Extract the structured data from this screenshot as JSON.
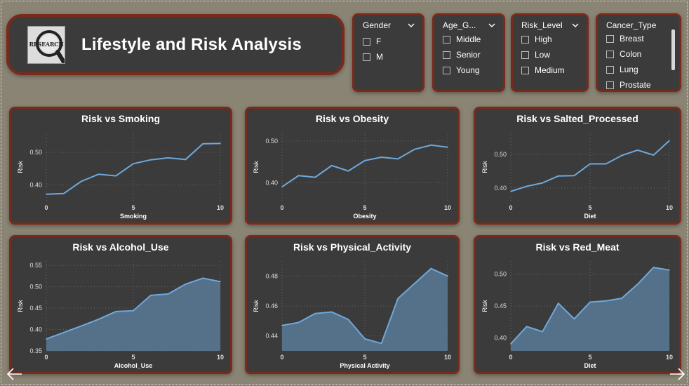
{
  "header": {
    "title": "Lifestyle and Risk Analysis",
    "logo_text": "RESEARCH"
  },
  "slicers": [
    {
      "title": "Gender",
      "items": [
        "F",
        "M"
      ]
    },
    {
      "title": "Age_G...",
      "items": [
        "Middle",
        "Senior",
        "Young"
      ]
    },
    {
      "title": "Risk_Level",
      "items": [
        "High",
        "Low",
        "Medium"
      ]
    },
    {
      "title": "Cancer_Type",
      "items": [
        "Breast",
        "Colon",
        "Lung",
        "Prostate"
      ]
    }
  ],
  "chart_data": [
    {
      "type": "line",
      "title": "Risk vs Smoking",
      "xlabel": "Smoking",
      "ylabel": "Risk",
      "xlim": [
        0,
        10
      ],
      "ylim": [
        0.35,
        0.56
      ],
      "xticks": [
        0,
        5,
        10
      ],
      "yticks": [
        0.4,
        0.5
      ],
      "grid": true,
      "fill": false,
      "color": "#6fa8dc",
      "x": [
        0,
        1,
        2,
        3,
        4,
        5,
        6,
        7,
        8,
        9,
        10
      ],
      "y": [
        0.372,
        0.374,
        0.411,
        0.433,
        0.428,
        0.465,
        0.477,
        0.483,
        0.478,
        0.526,
        0.527
      ]
    },
    {
      "type": "line",
      "title": "Risk vs Obesity",
      "xlabel": "Obesity",
      "ylabel": "Risk",
      "xlim": [
        0,
        10
      ],
      "ylim": [
        0.355,
        0.52
      ],
      "xticks": [
        0,
        5,
        10
      ],
      "yticks": [
        0.4,
        0.5
      ],
      "grid": true,
      "fill": false,
      "color": "#6fa8dc",
      "x": [
        0,
        1,
        2,
        3,
        4,
        5,
        6,
        7,
        8,
        9,
        10
      ],
      "y": [
        0.39,
        0.417,
        0.413,
        0.441,
        0.428,
        0.453,
        0.461,
        0.457,
        0.48,
        0.49,
        0.485
      ]
    },
    {
      "type": "line",
      "title": "Risk vs Salted_Processed",
      "xlabel": "Diet",
      "ylabel": "Risk",
      "xlim": [
        0,
        10
      ],
      "ylim": [
        0.36,
        0.565
      ],
      "xticks": [
        0,
        5,
        10
      ],
      "yticks": [
        0.4,
        0.5
      ],
      "grid": true,
      "fill": false,
      "color": "#6fa8dc",
      "x": [
        0,
        1,
        2,
        3,
        4,
        5,
        6,
        7,
        8,
        9,
        10
      ],
      "y": [
        0.39,
        0.405,
        0.415,
        0.436,
        0.437,
        0.472,
        0.472,
        0.497,
        0.513,
        0.498,
        0.541
      ]
    },
    {
      "type": "area",
      "title": "Risk vs Alcohol_Use",
      "xlabel": "Alcohol_Use",
      "ylabel": "Risk",
      "xlim": [
        0,
        10
      ],
      "ylim": [
        0.35,
        0.56
      ],
      "xticks": [
        0,
        5,
        10
      ],
      "yticks": [
        0.35,
        0.4,
        0.45,
        0.5,
        0.55
      ],
      "grid": true,
      "fill": true,
      "color": "#6fa8dc",
      "x": [
        0,
        1,
        2,
        3,
        4,
        5,
        6,
        7,
        8,
        9,
        10
      ],
      "y": [
        0.378,
        0.393,
        0.408,
        0.424,
        0.442,
        0.444,
        0.48,
        0.483,
        0.506,
        0.52,
        0.512
      ]
    },
    {
      "type": "area",
      "title": "Risk vs Physical_Activity",
      "xlabel": "Physical Activity",
      "ylabel": "Risk",
      "xlim": [
        0,
        10
      ],
      "ylim": [
        0.43,
        0.49
      ],
      "xticks": [
        0,
        5,
        10
      ],
      "yticks": [
        0.44,
        0.46,
        0.48
      ],
      "grid": true,
      "fill": true,
      "color": "#6fa8dc",
      "x": [
        0,
        1,
        2,
        3,
        4,
        5,
        6,
        7,
        8,
        9,
        10
      ],
      "y": [
        0.447,
        0.449,
        0.455,
        0.456,
        0.451,
        0.438,
        0.435,
        0.465,
        0.475,
        0.485,
        0.48
      ]
    },
    {
      "type": "area",
      "title": "Risk vs Red_Meat",
      "xlabel": "Diet",
      "ylabel": "Risk",
      "xlim": [
        0,
        10
      ],
      "ylim": [
        0.38,
        0.52
      ],
      "xticks": [
        0,
        5,
        10
      ],
      "yticks": [
        0.4,
        0.45,
        0.5
      ],
      "grid": true,
      "fill": true,
      "color": "#6fa8dc",
      "x": [
        0,
        1,
        2,
        3,
        4,
        5,
        6,
        7,
        8,
        9,
        10
      ],
      "y": [
        0.391,
        0.418,
        0.41,
        0.454,
        0.43,
        0.456,
        0.458,
        0.462,
        0.484,
        0.51,
        0.506
      ]
    }
  ]
}
